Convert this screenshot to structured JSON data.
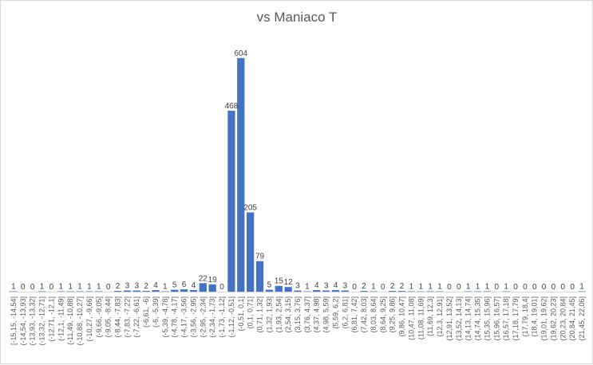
{
  "chart_data": {
    "type": "bar",
    "title": "vs Maniaco T",
    "xlabel": "",
    "ylabel": "",
    "ylim": [
      0,
      650
    ],
    "grid": false,
    "legend": "none",
    "bar_color": "#4472C4",
    "categories": [
      "[-15,15, -14,54]",
      "(-14,54, -13,93]",
      "(-13,93, -13,32]",
      "(-13,32, -12,71]",
      "(-12,71, -12,1]",
      "(-12,1, -11,49]",
      "(-11,49, -10,88]",
      "(-10,88, -10,27]",
      "(-10,27, -9,66]",
      "(-9,66, -9,05]",
      "(-9,05, -8,44]",
      "(-8,44, -7,83]",
      "(-7,83, -7,22]",
      "(-7,22, -6,61]",
      "(-6,61, -6]",
      "(-6, -5,39]",
      "(-5,39, -4,78]",
      "(-4,78, -4,17]",
      "(-4,17, -3,56]",
      "(-3,56, -2,95]",
      "(-2,95, -2,34]",
      "(-2,34, -1,73]",
      "(-1,73, -1,12]",
      "(-1,12, -0,51]",
      "(-0,51, 0,1]",
      "(0,1, 0,71]",
      "(0,71, 1,32]",
      "(1,32, 1,93]",
      "(1,93, 2,54]",
      "(2,54, 3,15]",
      "(3,15, 3,76]",
      "(3,76, 4,37]",
      "(4,37, 4,98]",
      "(4,98, 5,59]",
      "(5,59, 6,2]",
      "(6,2, 6,81]",
      "(6,81, 7,42]",
      "(7,42, 8,03]",
      "(8,03, 8,64]",
      "(8,64, 9,25]",
      "(9,25, 9,86]",
      "(9,86, 10,47]",
      "(10,47, 11,08]",
      "(11,08, 11,69]",
      "(11,69, 12,3]",
      "(12,3, 12,91]",
      "(12,91, 13,52]",
      "(13,52, 14,13]",
      "(14,13, 14,74]",
      "(14,74, 15,35]",
      "(15,35, 15,96]",
      "(15,96, 16,57]",
      "(16,57, 17,18]",
      "(17,18, 17,79]",
      "(17,79, 18,4]",
      "(18,4, 19,01]",
      "(19,01, 19,62]",
      "(19,62, 20,23]",
      "(20,23, 20,84]",
      "(20,84, 21,45]",
      "(21,45, 22,06]"
    ],
    "values": [
      1,
      0,
      0,
      1,
      0,
      1,
      1,
      1,
      1,
      1,
      0,
      2,
      3,
      3,
      2,
      4,
      1,
      5,
      6,
      4,
      22,
      19,
      0,
      468,
      604,
      205,
      79,
      5,
      15,
      12,
      3,
      1,
      4,
      3,
      4,
      3,
      0,
      2,
      1,
      0,
      2,
      2,
      1,
      1,
      1,
      1,
      0,
      0,
      1,
      1,
      1,
      0,
      1,
      0,
      0,
      0,
      0,
      0,
      0,
      0,
      1
    ]
  }
}
